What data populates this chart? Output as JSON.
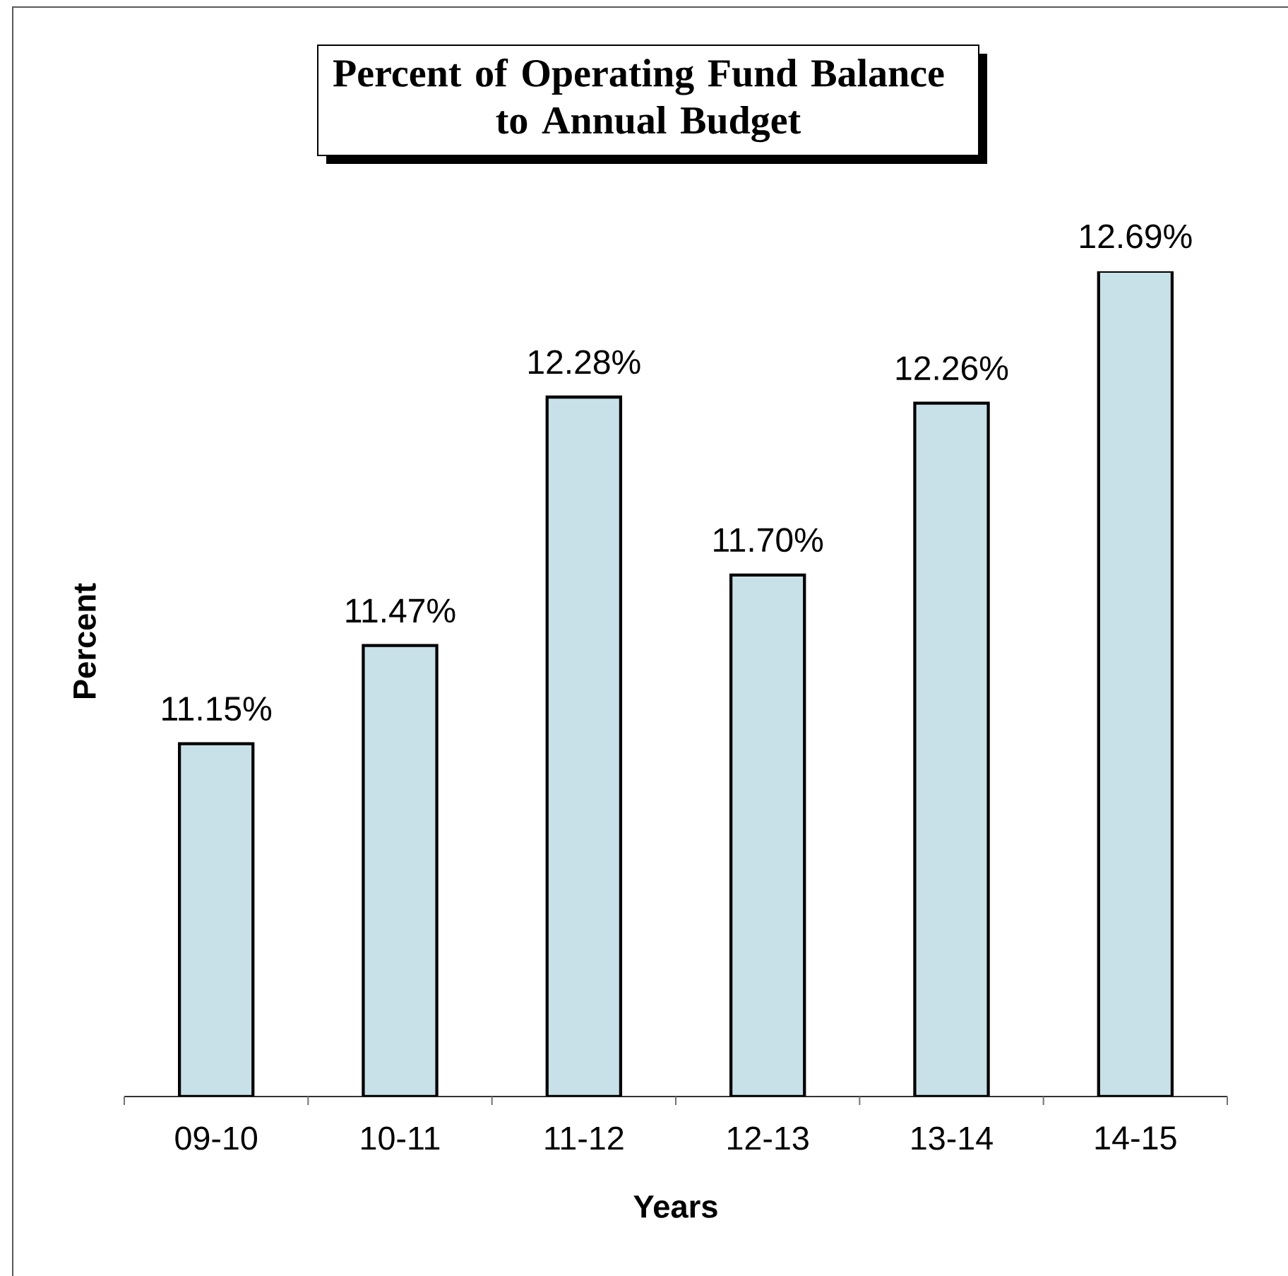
{
  "chart_data": {
    "type": "bar",
    "title": "Percent of Operating Fund Balance to Annual Budget",
    "xlabel": "Years",
    "ylabel": "Percent",
    "categories": [
      "09-10",
      "10-11",
      "11-12",
      "12-13",
      "13-14",
      "14-15"
    ],
    "values": [
      11.15,
      11.47,
      12.28,
      11.7,
      12.26,
      12.69
    ],
    "value_labels": [
      "11.15%",
      "11.47%",
      "12.28%",
      "11.70%",
      "12.26%",
      "12.69%"
    ],
    "color": "#c8e1e8",
    "ylim": [
      10,
      12.69
    ],
    "tick_labels": "x"
  }
}
